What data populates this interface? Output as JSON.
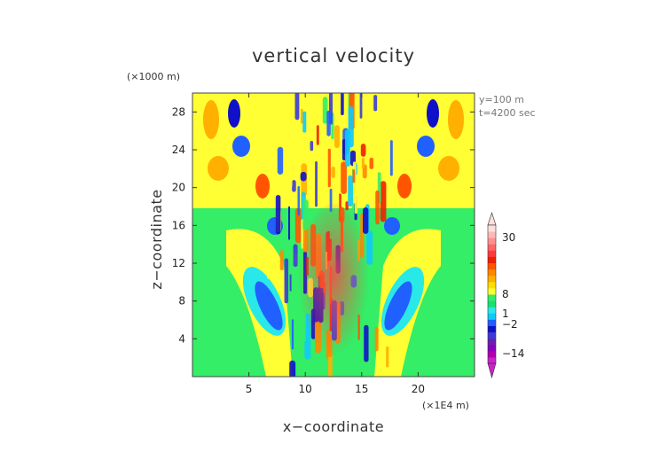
{
  "chart_data": {
    "type": "heatmap",
    "title": "vertical velocity",
    "xlabel": "x−coordinate",
    "ylabel": "z−coordinate",
    "x_unit": "(×1E4 m)",
    "y_unit": "(×1000 m)",
    "annotations": [
      "y=100  m",
      "t=4200 sec"
    ],
    "x_ticks": [
      5,
      10,
      15,
      20
    ],
    "y_ticks": [
      4,
      8,
      12,
      16,
      20,
      24,
      28
    ],
    "xlim": [
      0,
      25
    ],
    "ylim": [
      0,
      30
    ],
    "colorbar": {
      "labels": [
        "30",
        "8",
        "1",
        "−2",
        "−14"
      ],
      "colors": [
        "#cc22cc",
        "#b000b0",
        "#8a00c0",
        "#6a1fb0",
        "#3b3bd8",
        "#1010c8",
        "#2060ff",
        "#10c8ff",
        "#28e8e8",
        "#18e070",
        "#33ee66",
        "#ffff33",
        "#ffdd00",
        "#ffb000",
        "#ff8800",
        "#ff5500",
        "#ee2000",
        "#ff3a3a",
        "#ff6666",
        "#ff9090",
        "#ffb8b8",
        "#ffdede"
      ]
    },
    "colors": {
      "background_field": "#33ee66",
      "midlevel_field": "#ffff33"
    }
  }
}
